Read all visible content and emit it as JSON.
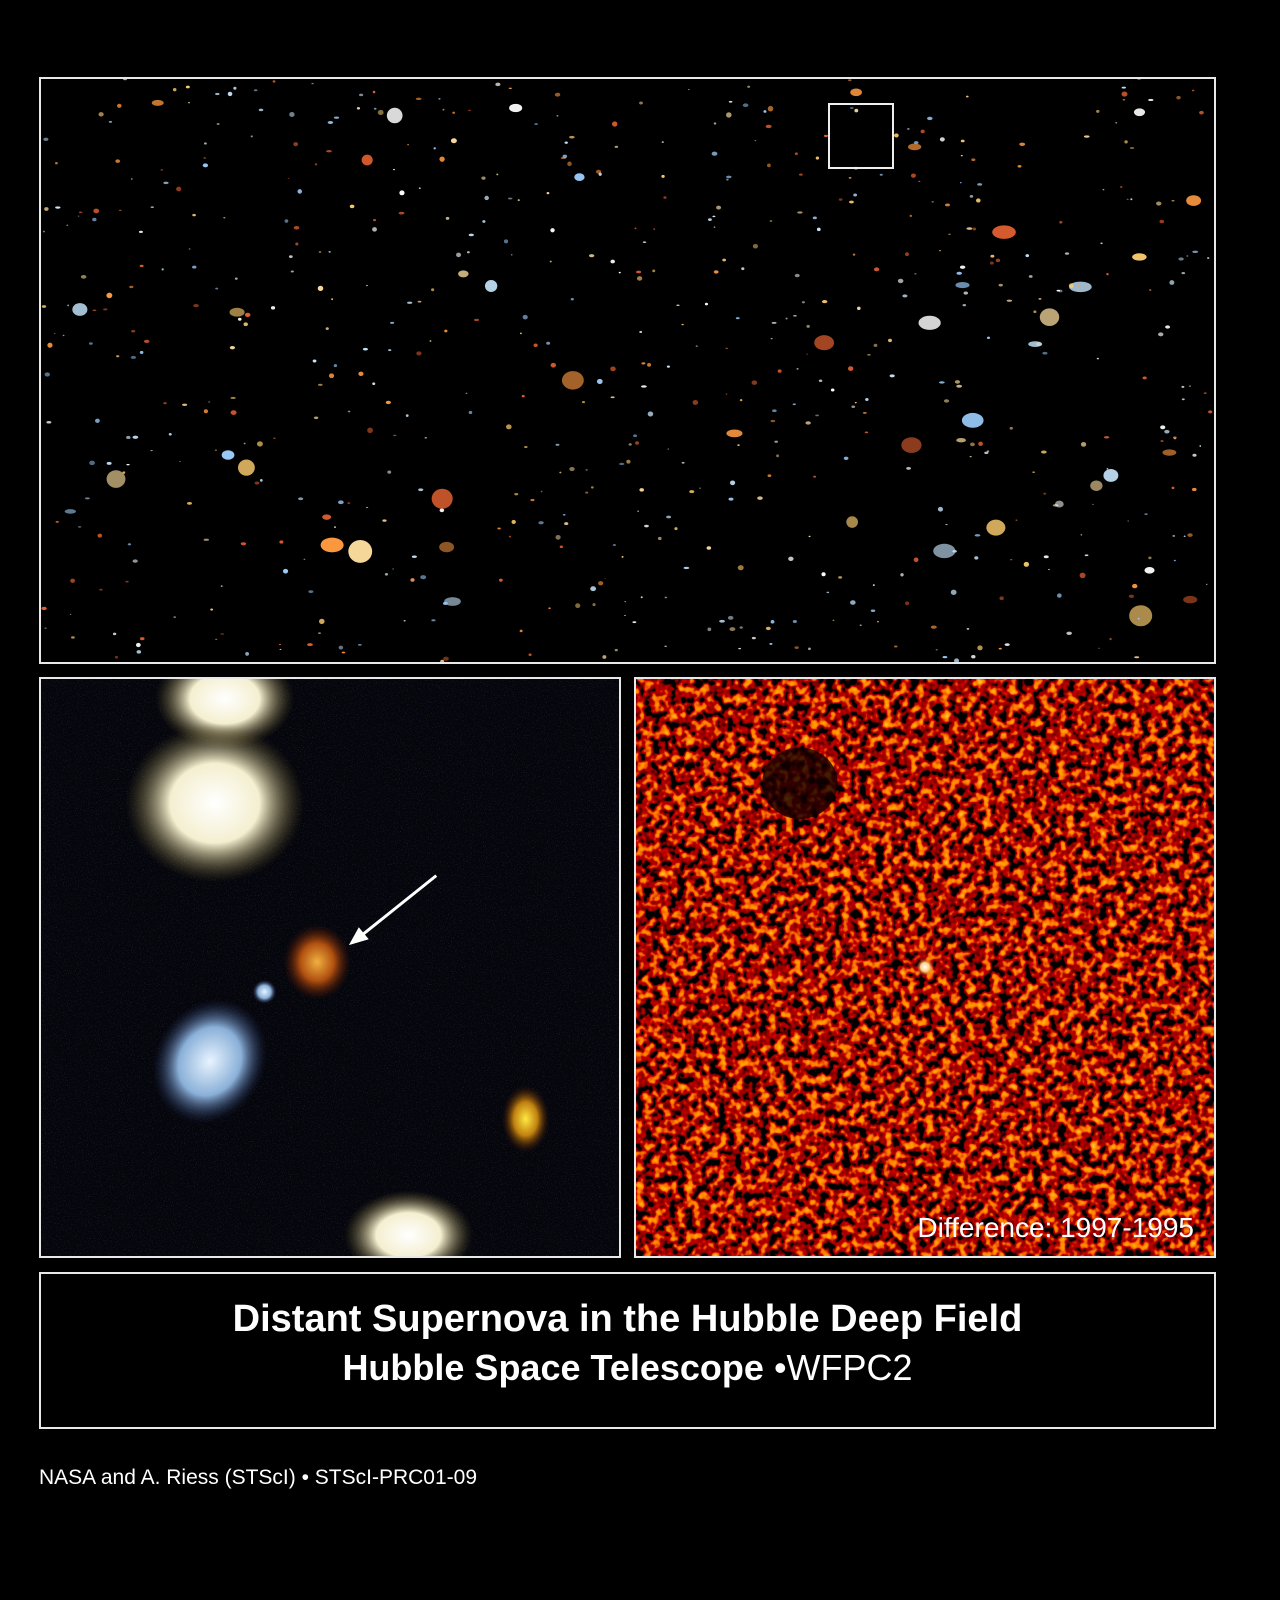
{
  "caption": {
    "title": "Distant Supernova in the Hubble Deep Field",
    "telescope": "Hubble Space Telescope",
    "separator": "•",
    "instrument": "WFPC2"
  },
  "difference_panel": {
    "label": "Difference: 1997-1995"
  },
  "credit": "NASA and A. Riess (STScI) • STScI-PRC01-09",
  "colors": {
    "background": "#000000",
    "frame": "#e8e8e8",
    "difference_tint": "#b01800"
  }
}
